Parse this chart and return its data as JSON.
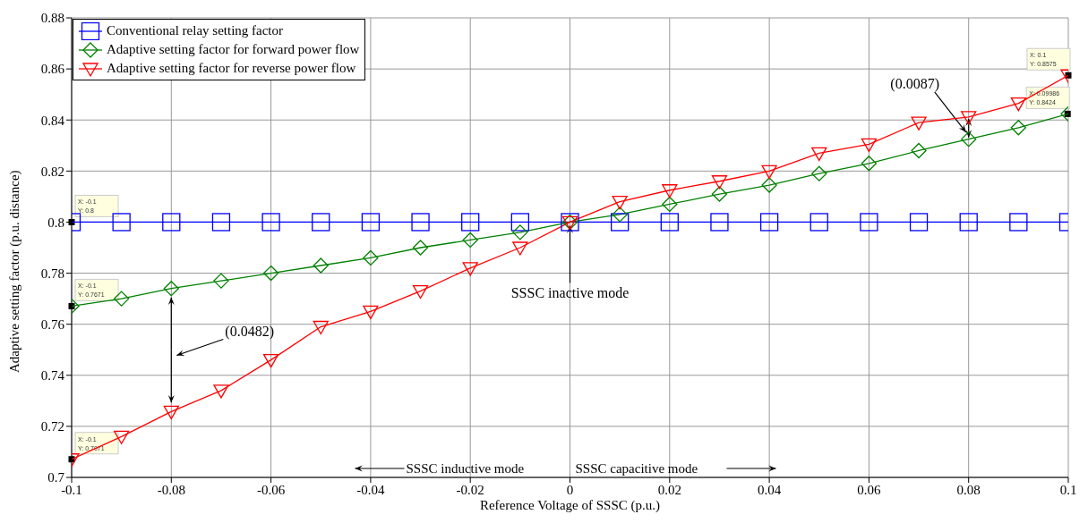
{
  "chart_data": {
    "type": "line",
    "xlabel": "Reference Voltage of SSSC (p.u.)",
    "ylabel": "Adaptive setting factor (p.u. distance)",
    "x": [
      -0.1,
      -0.09,
      -0.08,
      -0.07,
      -0.06,
      -0.05,
      -0.04,
      -0.03,
      -0.02,
      -0.01,
      0,
      0.01,
      0.02,
      0.03,
      0.04,
      0.05,
      0.06,
      0.07,
      0.08,
      0.09,
      0.1
    ],
    "series": [
      {
        "name": "Conventional relay setting factor",
        "color": "#0000ff",
        "marker": "square",
        "values": [
          0.8,
          0.8,
          0.8,
          0.8,
          0.8,
          0.8,
          0.8,
          0.8,
          0.8,
          0.8,
          0.8,
          0.8,
          0.8,
          0.8,
          0.8,
          0.8,
          0.8,
          0.8,
          0.8,
          0.8,
          0.8
        ]
      },
      {
        "name": "Adaptive setting factor for forward power flow",
        "color": "#008000",
        "marker": "diamond",
        "values": [
          0.7671,
          0.77,
          0.774,
          0.777,
          0.78,
          0.783,
          0.786,
          0.79,
          0.793,
          0.796,
          0.8,
          0.803,
          0.807,
          0.811,
          0.8145,
          0.819,
          0.823,
          0.828,
          0.8325,
          0.837,
          0.8424
        ]
      },
      {
        "name": "Adaptive setting factor for reverse power flow",
        "color": "#ff0000",
        "marker": "triangle",
        "values": [
          0.7071,
          0.716,
          0.7258,
          0.734,
          0.746,
          0.759,
          0.765,
          0.773,
          0.782,
          0.79,
          0.8,
          0.808,
          0.8125,
          0.816,
          0.82,
          0.827,
          0.8305,
          0.839,
          0.8412,
          0.8465,
          0.8575
        ]
      }
    ],
    "xlim": [
      -0.1,
      0.1
    ],
    "xticks": [
      -0.1,
      -0.08,
      -0.06,
      -0.04,
      -0.02,
      0,
      0.02,
      0.04,
      0.06,
      0.08,
      0.1
    ],
    "ylim": [
      0.7,
      0.88
    ],
    "yticks": [
      0.7,
      0.72,
      0.74,
      0.76,
      0.78,
      0.8,
      0.82,
      0.84,
      0.86,
      0.88
    ],
    "grid": true,
    "legend": "top left",
    "line_style": "solid",
    "annotations": [
      {
        "text": "X: -0.1\nY: 0.8",
        "x": -0.1,
        "y": 0.8
      },
      {
        "text": "X: -0.1\nY: 0.7671",
        "x": -0.1,
        "y": 0.7671
      },
      {
        "text": "X: -0.1\nY: 0.7071",
        "x": -0.1,
        "y": 0.7071
      },
      {
        "text": "X: 0.1\nY: 0.8575",
        "x": 0.1,
        "y": 0.8575
      },
      {
        "text": "X: 0.09986\nY: 0.8424",
        "x": 0.09986,
        "y": 0.8424
      },
      "(0.0482)",
      {
        "text": "(0.0087)",
        "x": 0.08,
        "y": 0.837
      },
      {
        "text": "SSSC inactive mode",
        "x": 0,
        "y": 0.8
      },
      "SSSC inductive mode",
      "SSSC capacitive mode"
    ]
  }
}
